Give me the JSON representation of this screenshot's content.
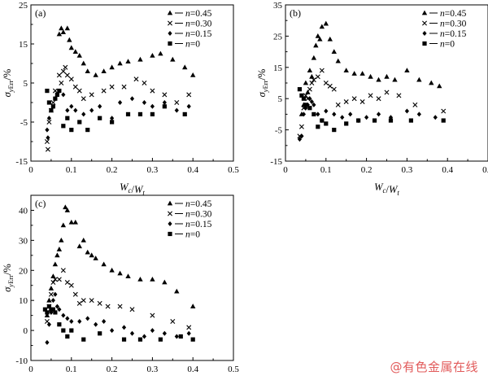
{
  "watermark": "@有色金属在线",
  "chart_data": [
    {
      "type": "scatter",
      "panel": "(a)",
      "xlabel": "Wc/Wt",
      "ylabel": "σyErr/%",
      "xlim": [
        0,
        0.5
      ],
      "ylim": [
        -15,
        25
      ],
      "xticks": [
        "0",
        "0.1",
        "0.2",
        "0.3",
        "0.4",
        "0.5"
      ],
      "yticks": [
        "-15",
        "-5",
        "5",
        "15",
        "25"
      ],
      "grid": false,
      "legend_position": "top-right",
      "series": [
        {
          "name": "n=0.45",
          "marker": "triangle",
          "x": [
            0.07,
            0.075,
            0.08,
            0.09,
            0.095,
            0.1,
            0.11,
            0.12,
            0.13,
            0.14,
            0.16,
            0.18,
            0.2,
            0.22,
            0.24,
            0.27,
            0.3,
            0.32,
            0.35,
            0.38,
            0.4
          ],
          "y": [
            17.5,
            19,
            18,
            19,
            16,
            14,
            13,
            12,
            10,
            8,
            7,
            8,
            9,
            10,
            10.5,
            11,
            12,
            12.5,
            11,
            9,
            7
          ]
        },
        {
          "name": "n=0.30",
          "marker": "x",
          "x": [
            0.04,
            0.042,
            0.045,
            0.05,
            0.055,
            0.06,
            0.07,
            0.075,
            0.08,
            0.085,
            0.09,
            0.1,
            0.11,
            0.12,
            0.13,
            0.15,
            0.18,
            0.2,
            0.23,
            0.26,
            0.28,
            0.3,
            0.33,
            0.36,
            0.39
          ],
          "y": [
            -10,
            -12,
            -5,
            -2,
            0,
            3,
            7,
            5,
            8,
            9,
            7,
            6,
            4,
            3,
            1,
            2,
            3,
            4,
            4,
            6,
            5,
            3,
            2,
            0,
            2
          ]
        },
        {
          "name": "n=0.15",
          "marker": "diamond",
          "x": [
            0.04,
            0.042,
            0.045,
            0.05,
            0.055,
            0.06,
            0.07,
            0.08,
            0.09,
            0.1,
            0.11,
            0.13,
            0.15,
            0.17,
            0.2,
            0.22,
            0.25,
            0.28,
            0.3,
            0.33,
            0.36,
            0.39
          ],
          "y": [
            -7,
            -9,
            -4,
            -2,
            -1,
            1,
            3,
            2,
            -2,
            -1,
            -2,
            -3,
            -2,
            -1,
            -4,
            0,
            1,
            0,
            -1,
            0,
            -2,
            -1
          ]
        },
        {
          "name": "n=0",
          "marker": "square",
          "x": [
            0.04,
            0.045,
            0.05,
            0.055,
            0.06,
            0.065,
            0.07,
            0.08,
            0.09,
            0.1,
            0.12,
            0.14,
            0.17,
            0.2,
            0.24,
            0.27,
            0.3,
            0.33,
            0.38
          ],
          "y": [
            3,
            0,
            -2,
            -1,
            1,
            2,
            3,
            -6,
            -4,
            -7,
            -5,
            -7,
            -4,
            -5,
            -3,
            -3,
            -3,
            -1,
            -3
          ]
        }
      ]
    },
    {
      "type": "scatter",
      "panel": "(b)",
      "xlabel": "Wc/Wt",
      "ylabel": "σyErr/%",
      "xlim": [
        0,
        0.5
      ],
      "ylim": [
        -15,
        35
      ],
      "xticks": [
        "0",
        "0.1",
        "0.2",
        "0.3",
        "0.4",
        "0.5"
      ],
      "yticks": [
        "-15",
        "-5",
        "5",
        "15",
        "25",
        "35"
      ],
      "grid": false,
      "legend_position": "top-right",
      "series": [
        {
          "name": "n=0.45",
          "marker": "triangle",
          "x": [
            0.04,
            0.045,
            0.05,
            0.055,
            0.06,
            0.065,
            0.07,
            0.075,
            0.08,
            0.085,
            0.09,
            0.1,
            0.11,
            0.12,
            0.13,
            0.15,
            0.17,
            0.19,
            0.21,
            0.23,
            0.25,
            0.27,
            0.3,
            0.33,
            0.36,
            0.38
          ],
          "y": [
            0,
            3,
            10,
            7,
            14,
            12,
            18,
            22,
            25,
            24,
            28,
            29,
            24,
            20,
            17,
            14,
            13,
            13,
            12,
            11,
            12,
            11,
            14,
            11,
            10,
            9
          ]
        },
        {
          "name": "n=0.30",
          "marker": "x",
          "x": [
            0.035,
            0.04,
            0.045,
            0.05,
            0.055,
            0.06,
            0.065,
            0.07,
            0.08,
            0.09,
            0.1,
            0.11,
            0.12,
            0.13,
            0.15,
            0.17,
            0.19,
            0.21,
            0.23,
            0.25,
            0.28,
            0.32,
            0.39
          ],
          "y": [
            -7,
            -4,
            2,
            6,
            5,
            8,
            10,
            11,
            12,
            14,
            10,
            9,
            8,
            3,
            4,
            5,
            4,
            6,
            5,
            7,
            6,
            3,
            1
          ]
        },
        {
          "name": "n=0.15",
          "marker": "diamond",
          "x": [
            0.035,
            0.04,
            0.045,
            0.05,
            0.055,
            0.06,
            0.065,
            0.07,
            0.08,
            0.09,
            0.1,
            0.12,
            0.14,
            0.16,
            0.18,
            0.2,
            0.23,
            0.26,
            0.3,
            0.33,
            0.37
          ],
          "y": [
            -8,
            -7,
            0,
            2,
            3,
            5,
            4,
            3,
            0,
            -2,
            1,
            0,
            -1,
            0,
            -2,
            -1,
            0,
            -1,
            1,
            0,
            -1
          ]
        },
        {
          "name": "n=0",
          "marker": "square",
          "x": [
            0.035,
            0.04,
            0.045,
            0.05,
            0.06,
            0.07,
            0.08,
            0.09,
            0.1,
            0.12,
            0.15,
            0.18,
            0.22,
            0.26,
            0.31,
            0.39
          ],
          "y": [
            8,
            6,
            5,
            3,
            2,
            0,
            -4,
            -2,
            -3,
            -5,
            -3,
            -2,
            -2,
            -2,
            -2,
            -2
          ]
        }
      ]
    },
    {
      "type": "scatter",
      "panel": "(c)",
      "xlabel": "Wc/Wt",
      "ylabel": "σyErr/%",
      "xlim": [
        0,
        0.5
      ],
      "ylim": [
        -10,
        45
      ],
      "xticks": [
        "0",
        "0.1",
        "0.2",
        "0.3",
        "0.4",
        "0.5"
      ],
      "yticks": [
        "-10",
        "0",
        "10",
        "20",
        "30",
        "40"
      ],
      "grid": false,
      "legend_position": "top-right",
      "series": [
        {
          "name": "n=0.45",
          "marker": "triangle",
          "x": [
            0.04,
            0.045,
            0.05,
            0.055,
            0.06,
            0.065,
            0.07,
            0.075,
            0.08,
            0.085,
            0.09,
            0.1,
            0.11,
            0.12,
            0.13,
            0.14,
            0.15,
            0.16,
            0.18,
            0.2,
            0.22,
            0.24,
            0.27,
            0.3,
            0.33,
            0.36,
            0.4
          ],
          "y": [
            5,
            10,
            14,
            18,
            22,
            25,
            27,
            30,
            35,
            41,
            40,
            36,
            36,
            28,
            30,
            26,
            25,
            24,
            22,
            20,
            19,
            18,
            17,
            17,
            16,
            13,
            8
          ]
        },
        {
          "name": "n=0.30",
          "marker": "x",
          "x": [
            0.04,
            0.045,
            0.05,
            0.055,
            0.06,
            0.07,
            0.08,
            0.09,
            0.1,
            0.11,
            0.12,
            0.13,
            0.15,
            0.17,
            0.19,
            0.22,
            0.25,
            0.3,
            0.35,
            0.39
          ],
          "y": [
            3,
            8,
            12,
            16,
            17,
            17,
            20,
            16,
            15,
            12,
            9,
            10,
            10,
            9,
            8,
            8,
            7,
            5,
            3,
            1
          ]
        },
        {
          "name": "n=0.15",
          "marker": "diamond",
          "x": [
            0.04,
            0.045,
            0.05,
            0.055,
            0.06,
            0.065,
            0.07,
            0.08,
            0.09,
            0.1,
            0.12,
            0.14,
            0.16,
            0.18,
            0.2,
            0.23,
            0.25,
            0.28,
            0.3,
            0.33,
            0.36,
            0.39
          ],
          "y": [
            -4,
            2,
            6,
            10,
            12,
            8,
            7,
            5,
            4,
            3,
            3,
            4,
            2,
            3,
            0,
            1,
            -1,
            -2,
            0,
            -1,
            -2,
            -1
          ]
        },
        {
          "name": "n=0",
          "marker": "square",
          "x": [
            0.035,
            0.04,
            0.045,
            0.05,
            0.055,
            0.06,
            0.07,
            0.08,
            0.09,
            0.1,
            0.13,
            0.17,
            0.23,
            0.27,
            0.32,
            0.37,
            0.4
          ],
          "y": [
            7,
            6,
            8,
            7,
            7,
            6,
            2,
            0,
            -2,
            0,
            -3,
            -1,
            -3,
            -3,
            -3,
            -2,
            -3
          ]
        }
      ]
    }
  ]
}
